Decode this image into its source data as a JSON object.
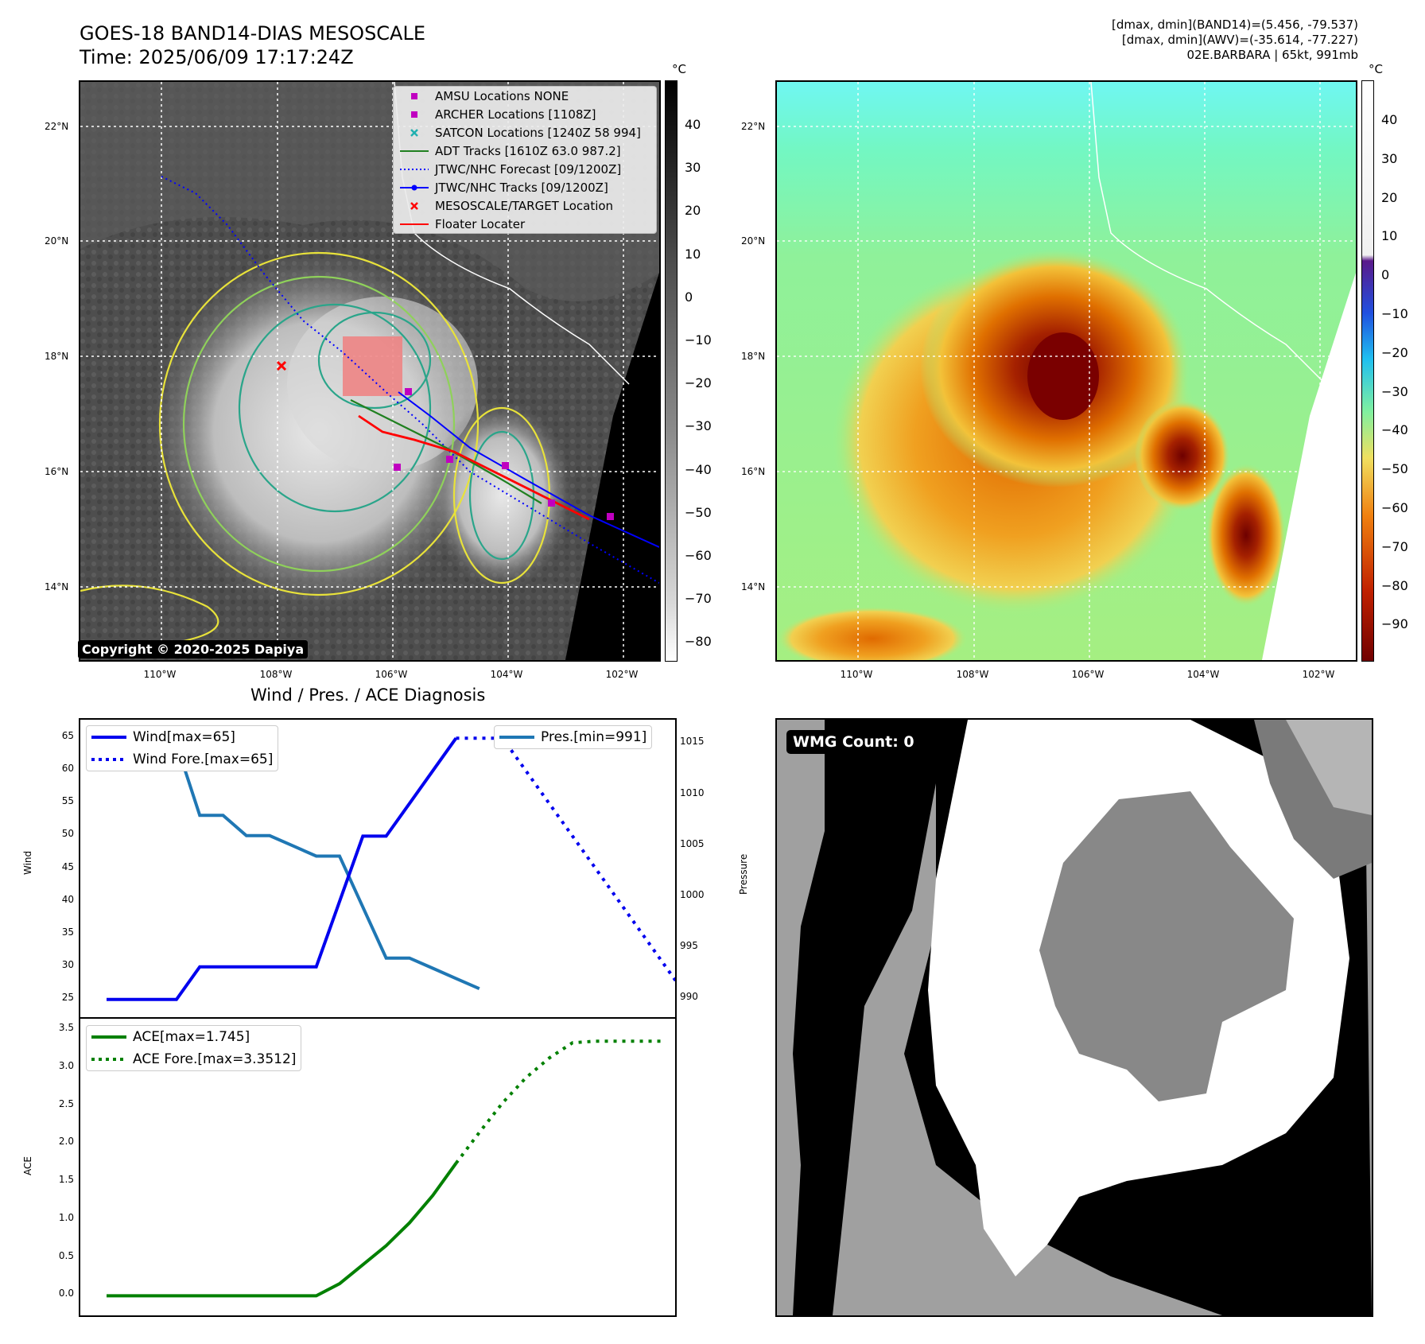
{
  "header": {
    "title_line1": "GOES-18 BAND14-DIAS MESOSCALE",
    "title_line2": "Time: 2025/06/09 17:17:24Z",
    "info_line1": "[dmax, dmin](BAND14)=(5.456, -79.537)",
    "info_line2": "[dmax, dmin](AWV)=(-35.614, -77.227)",
    "info_line3": "02E.BARBARA | 65kt, 991mb"
  },
  "map_axes": {
    "lat_labels": [
      "22°N",
      "20°N",
      "18°N",
      "16°N",
      "14°N"
    ],
    "lon_labels": [
      "110°W",
      "108°W",
      "106°W",
      "104°W",
      "102°W"
    ]
  },
  "left_colorbar": {
    "unit": "°C",
    "ticks": [
      "40",
      "30",
      "20",
      "10",
      "0",
      "−10",
      "−20",
      "−30",
      "−40",
      "−50",
      "−60",
      "−70",
      "−80"
    ]
  },
  "right_colorbar": {
    "unit": "°C",
    "ticks": [
      "40",
      "30",
      "20",
      "10",
      "0",
      "−10",
      "−20",
      "−30",
      "−40",
      "−50",
      "−60",
      "−70",
      "−80",
      "−90"
    ]
  },
  "map_legend": [
    {
      "label": "AMSU Locations NONE",
      "color": "#c000c0",
      "symbol": "square"
    },
    {
      "label": "ARCHER Locations [1108Z]",
      "color": "#c000c0",
      "symbol": "square"
    },
    {
      "label": "SATCON Locations [1240Z 58 994]",
      "color": "#20b0b0",
      "symbol": "x"
    },
    {
      "label": "ADT Tracks [1610Z 63.0 987.2]",
      "color": "#208020",
      "symbol": "line"
    },
    {
      "label": "JTWC/NHC Forecast [09/1200Z]",
      "color": "#0000ff",
      "symbol": "dotted"
    },
    {
      "label": "JTWC/NHC Tracks [09/1200Z]",
      "color": "#0000ff",
      "symbol": "line-dot"
    },
    {
      "label": "MESOSCALE/TARGET Location",
      "color": "#ff0000",
      "symbol": "x"
    },
    {
      "label": "Floater Locater",
      "color": "#ff0000",
      "symbol": "line"
    }
  ],
  "copyright": "Copyright © 2020-2025 Dapiya",
  "wmg": {
    "label": "WMG Count: 0"
  },
  "chart_data": [
    {
      "type": "line",
      "title": "Wind / Pres. / ACE Diagnosis",
      "ylabel": "Wind",
      "y2label": "Pressure",
      "ylim": [
        24,
        66
      ],
      "y2lim": [
        989.3,
        1016.2
      ],
      "yticks": [
        25,
        30,
        35,
        40,
        45,
        50,
        55,
        60,
        65
      ],
      "y2ticks": [
        990,
        995,
        1000,
        1005,
        1010,
        1015
      ],
      "x": [
        0,
        1,
        2,
        3,
        4,
        5,
        6,
        7,
        8,
        9,
        10,
        11,
        12,
        13,
        14,
        15,
        16,
        17,
        18,
        19,
        20,
        21,
        22,
        23
      ],
      "series": [
        {
          "name": "Wind[max=65]",
          "axis": "left",
          "style": "solid",
          "color": "#0000ee",
          "points": [
            [
              0,
              25
            ],
            [
              1,
              25
            ],
            [
              2,
              25
            ],
            [
              3,
              25
            ],
            [
              4,
              30
            ],
            [
              5,
              30
            ],
            [
              6,
              30
            ],
            [
              7,
              30
            ],
            [
              8,
              30
            ],
            [
              9,
              30
            ],
            [
              10,
              40
            ],
            [
              11,
              50
            ],
            [
              12,
              50
            ],
            [
              13,
              55
            ],
            [
              14,
              60
            ],
            [
              15,
              65
            ]
          ]
        },
        {
          "name": "Wind Fore.[max=65]",
          "axis": "left",
          "style": "dotted",
          "color": "#0000ee",
          "points": [
            [
              15,
              65
            ],
            [
              16,
              65
            ],
            [
              17,
              65
            ],
            [
              18,
              60
            ],
            [
              19,
              55
            ],
            [
              20,
              50
            ],
            [
              21,
              45
            ],
            [
              22,
              40
            ],
            [
              23,
              35
            ],
            [
              24,
              30
            ],
            [
              25,
              25
            ]
          ]
        },
        {
          "name": "Pres.[min=991]",
          "axis": "right",
          "style": "solid",
          "color": "#1f77b4",
          "points": [
            [
              0,
              1015
            ],
            [
              1,
              1015
            ],
            [
              2,
              1015
            ],
            [
              3,
              1015
            ],
            [
              4,
              1008
            ],
            [
              5,
              1008
            ],
            [
              6,
              1006
            ],
            [
              7,
              1006
            ],
            [
              8,
              1005
            ],
            [
              9,
              1004
            ],
            [
              10,
              1004
            ],
            [
              11,
              999
            ],
            [
              12,
              994
            ],
            [
              13,
              994
            ],
            [
              14,
              993
            ],
            [
              15,
              992
            ],
            [
              16,
              991
            ]
          ]
        }
      ]
    },
    {
      "type": "line",
      "ylabel": "ACE",
      "ylim": [
        -0.1,
        3.5
      ],
      "yticks": [
        0.0,
        0.5,
        1.0,
        1.5,
        2.0,
        2.5,
        3.0,
        3.5
      ],
      "series": [
        {
          "name": "ACE[max=1.745]",
          "style": "solid",
          "color": "#008000",
          "points": [
            [
              0,
              0
            ],
            [
              1,
              0
            ],
            [
              2,
              0
            ],
            [
              3,
              0
            ],
            [
              4,
              0
            ],
            [
              5,
              0
            ],
            [
              6,
              0
            ],
            [
              7,
              0
            ],
            [
              8,
              0
            ],
            [
              9,
              0
            ],
            [
              10,
              0.16
            ],
            [
              11,
              0.41
            ],
            [
              12,
              0.66
            ],
            [
              13,
              0.96
            ],
            [
              14,
              1.32
            ],
            [
              15,
              1.745
            ]
          ]
        },
        {
          "name": "ACE Fore.[max=3.3512]",
          "style": "dotted",
          "color": "#008000",
          "points": [
            [
              15,
              1.745
            ],
            [
              16,
              2.15
            ],
            [
              17,
              2.54
            ],
            [
              18,
              2.87
            ],
            [
              19,
              3.13
            ],
            [
              20,
              3.33
            ],
            [
              21,
              3.3512
            ],
            [
              22,
              3.3512
            ],
            [
              23,
              3.3512
            ],
            [
              24,
              3.3512
            ]
          ]
        }
      ]
    }
  ]
}
